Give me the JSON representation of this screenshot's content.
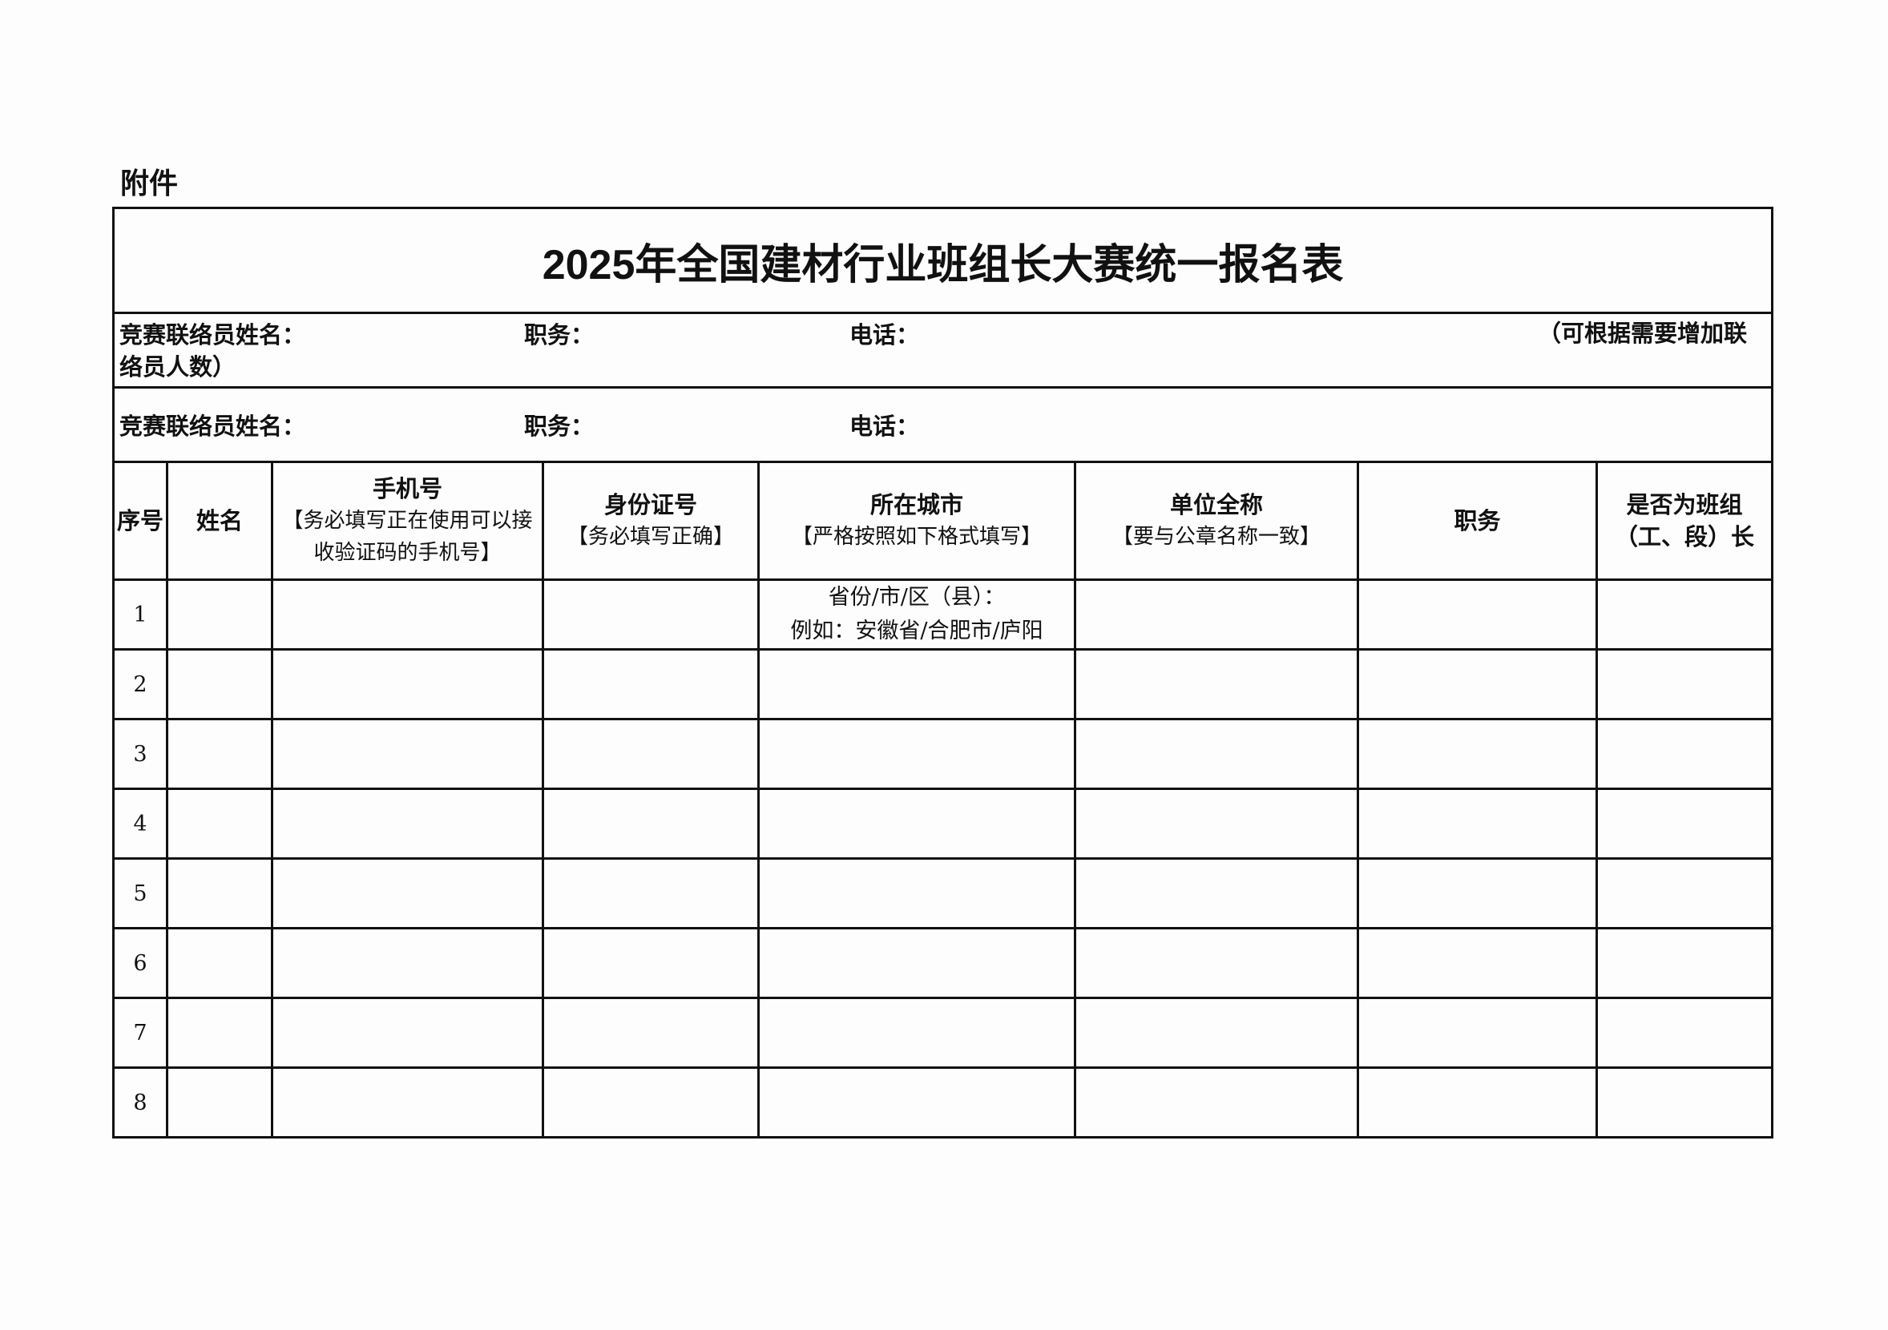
{
  "attachment_label": "附件",
  "title": "2025年全国建材行业班组长大赛统一报名表",
  "contact_rows": [
    {
      "name_label": "竞赛联络员姓名：",
      "position_label": "职务：",
      "phone_label": "电话：",
      "note": "（可根据需要增加联络员人数）"
    },
    {
      "name_label": "竞赛联络员姓名：",
      "position_label": "职务：",
      "phone_label": "电话："
    }
  ],
  "columns": [
    {
      "title": "序号",
      "sub": ""
    },
    {
      "title": "姓名",
      "sub": ""
    },
    {
      "title": "手机号",
      "sub": "【务必填写正在使用可以接收验证码的手机号】"
    },
    {
      "title": "身份证号",
      "sub": "【务必填写正确】"
    },
    {
      "title": "所在城市",
      "sub": "【严格按照如下格式填写】"
    },
    {
      "title": "单位全称",
      "sub": "【要与公章名称一致】"
    },
    {
      "title": "职务",
      "sub": ""
    },
    {
      "title": "是否为班组（工、段）长",
      "sub": ""
    }
  ],
  "rows": [
    "1",
    "2",
    "3",
    "4",
    "5",
    "6",
    "7",
    "8"
  ],
  "city_example": {
    "line1": "省份/市/区（县）：",
    "line2": "例如：安徽省/合肥市/庐阳"
  }
}
